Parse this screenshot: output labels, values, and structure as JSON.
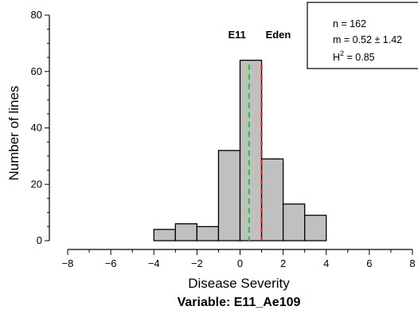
{
  "chart_data": {
    "type": "bar",
    "subtype": "histogram",
    "xlabel": "Disease Severity",
    "ylabel": "Number of lines",
    "subtitle": "Variable: E11_Ae109",
    "xlim": [
      -8,
      8
    ],
    "ylim": [
      0,
      80
    ],
    "x_ticks": [
      -8,
      -6,
      -4,
      -2,
      0,
      2,
      4,
      6,
      8
    ],
    "x_tick_labels": [
      "−8",
      "−6",
      "−4",
      "−2",
      "0",
      "2",
      "4",
      "6",
      "8"
    ],
    "y_ticks": [
      0,
      20,
      40,
      60,
      80
    ],
    "y_tick_labels": [
      "0",
      "20",
      "40",
      "60",
      "80"
    ],
    "bins": [
      {
        "start": -4,
        "end": -3,
        "count": 4
      },
      {
        "start": -3,
        "end": -2,
        "count": 6
      },
      {
        "start": -2,
        "end": -1,
        "count": 5
      },
      {
        "start": -1,
        "end": 0,
        "count": 32
      },
      {
        "start": 0,
        "end": 1,
        "count": 64
      },
      {
        "start": 1,
        "end": 2,
        "count": 29
      },
      {
        "start": 2,
        "end": 3,
        "count": 13
      },
      {
        "start": 3,
        "end": 4,
        "count": 9
      }
    ],
    "bar_color": "#c0c0c0",
    "grid": false,
    "reference_lines": [
      {
        "label": "E11",
        "x": 0.42,
        "color": "#22cc22",
        "style": "dashed"
      },
      {
        "label": "Eden",
        "x": 1.0,
        "color": "#dd2222",
        "style": "dashed"
      }
    ],
    "stats_box": {
      "placement": "top-right",
      "n": "n = 162",
      "m": "m = 0.52 ± 1.42",
      "h_prefix": "H",
      "h_sup": "2",
      "h_suffix": " = 0.85"
    }
  }
}
